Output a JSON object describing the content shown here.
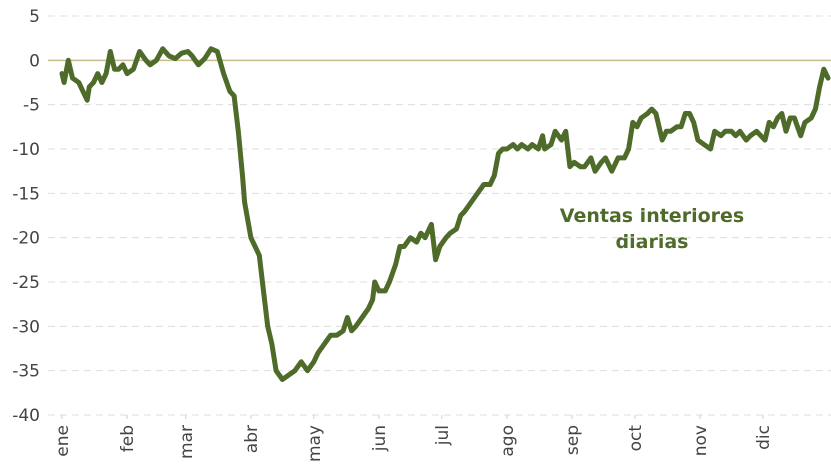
{
  "chart_data": {
    "type": "line",
    "annotation": [
      "Ventas interiores",
      "diarias"
    ],
    "x": [
      1,
      2,
      4,
      6,
      9,
      11,
      13,
      14,
      16,
      18,
      20,
      22,
      24,
      26,
      28,
      30,
      32,
      35,
      38,
      41,
      43,
      46,
      49,
      52,
      55,
      58,
      61,
      63,
      66,
      69,
      72,
      75,
      78,
      81,
      83,
      85,
      87,
      88,
      91,
      93,
      95,
      97,
      99,
      101,
      103,
      106,
      109,
      112,
      115,
      118,
      121,
      123,
      126,
      129,
      132,
      135,
      137,
      139,
      141,
      144,
      147,
      149,
      150,
      152,
      155,
      157,
      160,
      162,
      164,
      167,
      170,
      172,
      174,
      177,
      179,
      181,
      184,
      186,
      189,
      191,
      193,
      196,
      199,
      202,
      205,
      207,
      209,
      211,
      213,
      216,
      218,
      220,
      223,
      225,
      228,
      230,
      231,
      234,
      236,
      239,
      241,
      243,
      245,
      248,
      250,
      253,
      255,
      258,
      260,
      263,
      266,
      269,
      271,
      273,
      275,
      277,
      280,
      282,
      284,
      287,
      289,
      291,
      294,
      296,
      298,
      300,
      302,
      304,
      307,
      310,
      312,
      315,
      317,
      320,
      322,
      324,
      327,
      329,
      332,
      334,
      336,
      338,
      340,
      342,
      344,
      346,
      348,
      350,
      353,
      355,
      358,
      360,
      362,
      364,
      366
    ],
    "series": [
      {
        "color": "#4e6b2a",
        "values": [
          -1.5,
          -2.5,
          0,
          -2,
          -2.5,
          -3.5,
          -4.5,
          -3,
          -2.5,
          -1.5,
          -2.5,
          -1.5,
          1,
          -1,
          -1,
          -0.5,
          -1.5,
          -1,
          1,
          0,
          -0.5,
          0,
          1.3,
          0.5,
          0.2,
          0.8,
          1,
          0.5,
          -0.5,
          0.2,
          1.3,
          1,
          -1.5,
          -3.5,
          -4,
          -8,
          -13,
          -16,
          -20,
          -21,
          -22,
          -26,
          -30,
          -32,
          -35,
          -36,
          -35.5,
          -35,
          -34,
          -35,
          -34,
          -33,
          -32,
          -31,
          -31,
          -30.5,
          -29,
          -30.5,
          -30,
          -29,
          -28,
          -27,
          -25,
          -26,
          -26,
          -25,
          -23,
          -21,
          -21,
          -20,
          -20.5,
          -19.5,
          -20,
          -18.5,
          -22.5,
          -21,
          -20,
          -19.5,
          -19,
          -17.5,
          -17,
          -16,
          -15,
          -14,
          -14,
          -13,
          -10.5,
          -10,
          -10,
          -9.5,
          -10,
          -9.5,
          -10,
          -9.5,
          -10,
          -8.5,
          -10,
          -9.5,
          -8,
          -9,
          -8,
          -12,
          -11.5,
          -12,
          -12,
          -11,
          -12.5,
          -11.5,
          -11,
          -12.5,
          -11,
          -11,
          -10,
          -7,
          -7.5,
          -6.5,
          -6,
          -5.5,
          -6,
          -9,
          -8,
          -8,
          -7.5,
          -7.5,
          -6,
          -6,
          -7,
          -9,
          -9.5,
          -10,
          -8,
          -8.5,
          -8,
          -8,
          -8.5,
          -8,
          -9,
          -8.5,
          -8,
          -8.5,
          -9,
          -7,
          -7.5,
          -6.5,
          -6,
          -8,
          -6.5,
          -6.5,
          -8.5,
          -7,
          -6.5,
          -5.5,
          -3,
          -1,
          -2
        ]
      }
    ],
    "xlim": [
      1,
      366
    ],
    "xticks": [
      {
        "value": 1,
        "label": "ene"
      },
      {
        "value": 32,
        "label": "feb"
      },
      {
        "value": 60,
        "label": "mar"
      },
      {
        "value": 91,
        "label": "abr"
      },
      {
        "value": 121,
        "label": "may"
      },
      {
        "value": 152,
        "label": "jun"
      },
      {
        "value": 182,
        "label": "jul"
      },
      {
        "value": 213,
        "label": "ago"
      },
      {
        "value": 244,
        "label": "sep"
      },
      {
        "value": 274,
        "label": "oct"
      },
      {
        "value": 305,
        "label": "nov"
      },
      {
        "value": 335,
        "label": "dic"
      }
    ],
    "ylim": [
      -40,
      5
    ],
    "yticks": [
      5,
      0,
      -5,
      -10,
      -15,
      -20,
      -25,
      -30,
      -35,
      -40
    ],
    "grid": true
  }
}
